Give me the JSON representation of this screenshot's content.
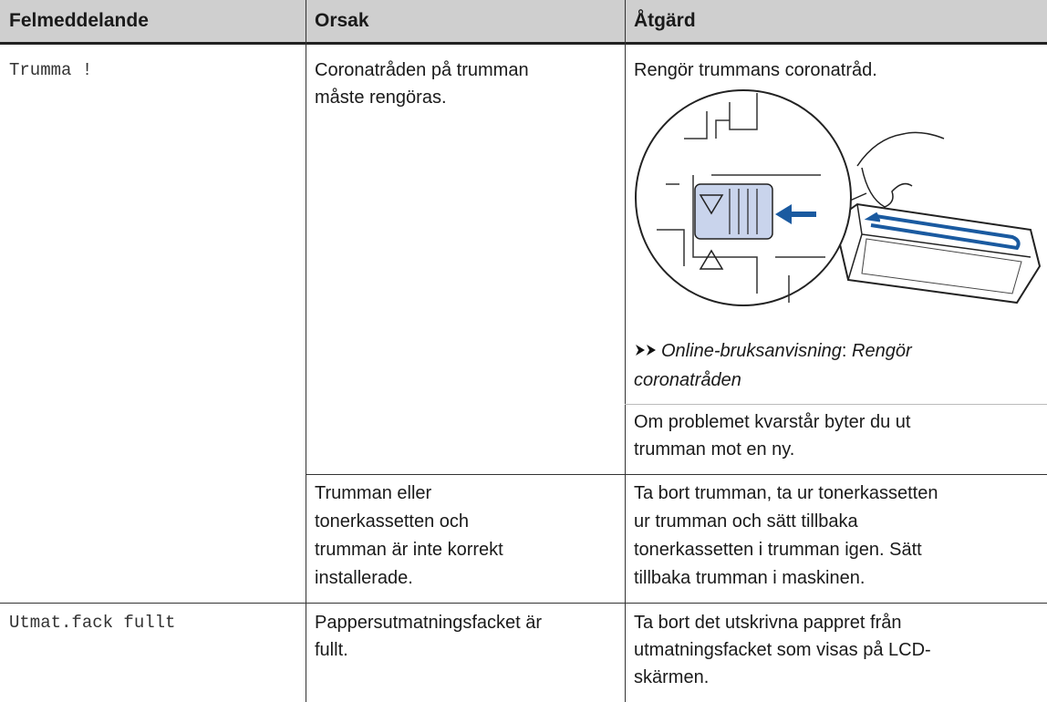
{
  "table": {
    "headers": [
      "Felmeddelande",
      "Orsak",
      "Åtgärd"
    ],
    "rows": [
      {
        "message": "Trumma !",
        "causes": [
          {
            "cause": [
              "Coronatråden på trumman",
              "måste rengöras."
            ],
            "action": {
              "intro": [
                "Rengör trummans coronatråd."
              ],
              "reference": {
                "manual": "Online-bruksanvisning",
                "separator": ":",
                "topic_lines": [
                  "Rengör",
                  "coronatråden"
                ]
              },
              "note": [
                "Om problemet kvarstår byter du ut",
                "trumman mot en ny."
              ]
            }
          },
          {
            "cause": [
              "Trumman eller",
              "tonerkassetten och",
              "trumman är inte korrekt",
              "installerade."
            ],
            "action": {
              "lines": [
                "Ta bort trumman, ta ur tonerkassetten",
                "ur trumman och sätt tillbaka",
                "tonerkassetten i trumman igen. Sätt",
                "tillbaka trumman i maskinen."
              ]
            }
          }
        ]
      },
      {
        "message": "Utmat.fack fullt",
        "causes": [
          {
            "cause": [
              "Pappersutmatningsfacket är",
              "fullt."
            ],
            "action": {
              "lines": [
                "Ta bort det utskrivna pappret från",
                "utmatningsfacket som visas på LCD-",
                "skärmen."
              ]
            }
          }
        ]
      }
    ]
  }
}
